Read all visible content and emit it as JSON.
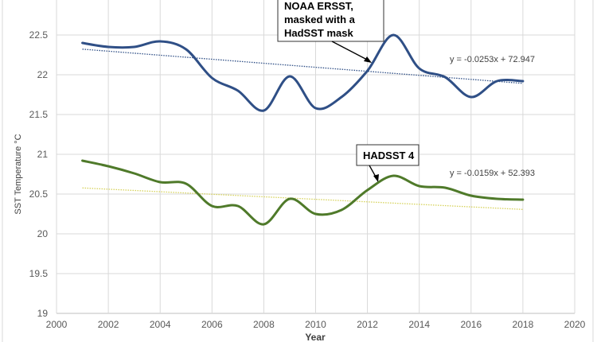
{
  "chart_data": {
    "type": "line",
    "xlabel": "Year",
    "ylabel": "SST Temperature °C",
    "xlim": [
      2000,
      2020
    ],
    "ylim": [
      19,
      23
    ],
    "x_ticks": [
      "2000",
      "2002",
      "2004",
      "2006",
      "2008",
      "2010",
      "2012",
      "2014",
      "2016",
      "2018",
      "2020"
    ],
    "y_ticks": [
      "19",
      "19.5",
      "20",
      "20.5",
      "21",
      "21.5",
      "22",
      "22.5"
    ],
    "grid": true,
    "smoothed": true,
    "x": [
      2001,
      2002,
      2003,
      2004,
      2005,
      2006,
      2007,
      2008,
      2009,
      2010,
      2011,
      2012,
      2013,
      2014,
      2015,
      2016,
      2017,
      2018
    ],
    "series": [
      {
        "name": "NOAA ERSST, masked with a HadSST mask",
        "color": "#2f4f86",
        "values": [
          22.4,
          22.35,
          22.35,
          22.42,
          22.32,
          21.96,
          21.8,
          21.55,
          21.98,
          21.58,
          21.72,
          22.05,
          22.5,
          22.08,
          21.97,
          21.72,
          21.92,
          21.92
        ],
        "trendline": {
          "slope": -0.0253,
          "intercept": 72.947,
          "label": "y = -0.0253x + 72.947",
          "color": "#2f4f86"
        }
      },
      {
        "name": "HADSST 4",
        "color": "#4f7a2a",
        "values": [
          20.92,
          20.85,
          20.76,
          20.65,
          20.63,
          20.35,
          20.35,
          20.12,
          20.44,
          20.25,
          20.3,
          20.55,
          20.73,
          20.6,
          20.58,
          20.48,
          20.44,
          20.43
        ],
        "trendline": {
          "slope": -0.0159,
          "intercept": 52.393,
          "label": "y = -0.0159x + 52.393",
          "color": "#d6d25a"
        }
      }
    ],
    "annotations": {
      "noaa_lines": [
        "NOAA ERSST,",
        "masked with a",
        "HadSST mask"
      ],
      "hadsst": "HADSST 4"
    }
  }
}
